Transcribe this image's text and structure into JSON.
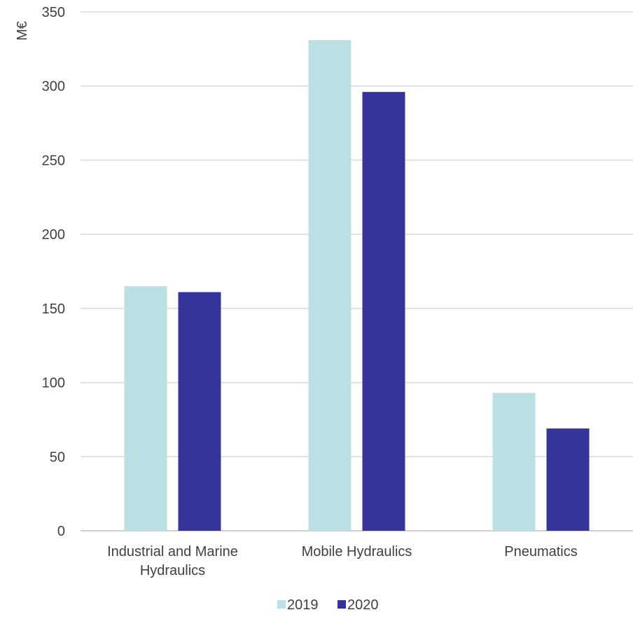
{
  "chart_data": {
    "type": "bar",
    "title": "",
    "ylabel": "M€",
    "xlabel": "",
    "ylim": [
      0,
      350
    ],
    "yticks": [
      0,
      50,
      100,
      150,
      200,
      250,
      300,
      350
    ],
    "grid": true,
    "legend_position": "bottom",
    "categories": [
      [
        "Industrial and Marine",
        "Hydraulics"
      ],
      [
        "Mobile Hydraulics"
      ],
      [
        "Pneumatics"
      ]
    ],
    "series": [
      {
        "name": "2019",
        "color": "#bae0e4",
        "values": [
          165,
          331,
          93
        ]
      },
      {
        "name": "2020",
        "color": "#34349a",
        "values": [
          161,
          296,
          69
        ]
      }
    ]
  }
}
